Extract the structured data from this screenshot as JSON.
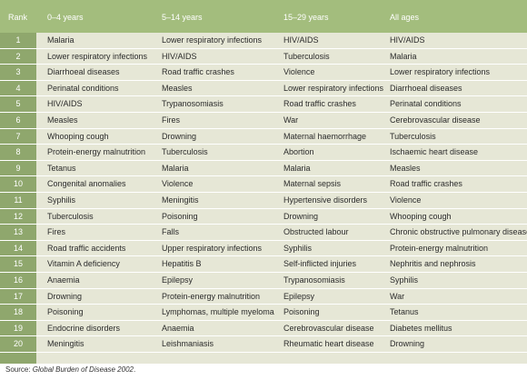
{
  "header": {
    "rank": "Rank",
    "col1": "0–4 years",
    "col2": "5–14 years",
    "col3": "15–29 years",
    "col4": "All ages"
  },
  "rows": [
    {
      "rank": "1",
      "c1": "Malaria",
      "c2": "Lower respiratory infections",
      "c3": "HIV/AIDS",
      "c4": "HIV/AIDS"
    },
    {
      "rank": "2",
      "c1": "Lower respiratory infections",
      "c2": "HIV/AIDS",
      "c3": "Tuberculosis",
      "c4": "Malaria"
    },
    {
      "rank": "3",
      "c1": "Diarrhoeal diseases",
      "c2": "Road traffic crashes",
      "c3": "Violence",
      "c4": "Lower respiratory infections"
    },
    {
      "rank": "4",
      "c1": "Perinatal conditions",
      "c2": "Measles",
      "c3": "Lower respiratory infections",
      "c4": "Diarrhoeal diseases"
    },
    {
      "rank": "5",
      "c1": "HIV/AIDS",
      "c2": "Trypanosomiasis",
      "c3": "Road traffic crashes",
      "c4": "Perinatal conditions"
    },
    {
      "rank": "6",
      "c1": "Measles",
      "c2": "Fires",
      "c3": "War",
      "c4": "Cerebrovascular disease"
    },
    {
      "rank": "7",
      "c1": "Whooping cough",
      "c2": "Drowning",
      "c3": "Maternal haemorrhage",
      "c4": "Tuberculosis"
    },
    {
      "rank": "8",
      "c1": "Protein-energy malnutrition",
      "c2": "Tuberculosis",
      "c3": "Abortion",
      "c4": "Ischaemic heart disease"
    },
    {
      "rank": "9",
      "c1": "Tetanus",
      "c2": "Malaria",
      "c3": "Malaria",
      "c4": "Measles"
    },
    {
      "rank": "10",
      "c1": "Congenital anomalies",
      "c2": "Violence",
      "c3": "Maternal sepsis",
      "c4": "Road traffic crashes"
    },
    {
      "rank": "11",
      "c1": "Syphilis",
      "c2": "Meningitis",
      "c3": "Hypertensive disorders",
      "c4": "Violence"
    },
    {
      "rank": "12",
      "c1": "Tuberculosis",
      "c2": "Poisoning",
      "c3": "Drowning",
      "c4": "Whooping cough"
    },
    {
      "rank": "13",
      "c1": "Fires",
      "c2": "Falls",
      "c3": "Obstructed labour",
      "c4": "Chronic obstructive pulmonary disease"
    },
    {
      "rank": "14",
      "c1": "Road traffic accidents",
      "c2": "Upper respiratory infections",
      "c3": "Syphilis",
      "c4": "Protein-energy malnutrition"
    },
    {
      "rank": "15",
      "c1": "Vitamin A deficiency",
      "c2": "Hepatitis B",
      "c3": "Self-inflicted injuries",
      "c4": "Nephritis and nephrosis"
    },
    {
      "rank": "16",
      "c1": "Anaemia",
      "c2": "Epilepsy",
      "c3": "Trypanosomiasis",
      "c4": "Syphilis"
    },
    {
      "rank": "17",
      "c1": "Drowning",
      "c2": "Protein-energy malnutrition",
      "c3": "Epilepsy",
      "c4": "War"
    },
    {
      "rank": "18",
      "c1": "Poisoning",
      "c2": "Lymphomas, multiple myeloma",
      "c3": "Poisoning",
      "c4": "Tetanus"
    },
    {
      "rank": "19",
      "c1": "Endocrine disorders",
      "c2": "Anaemia",
      "c3": "Cerebrovascular disease",
      "c4": "Diabetes mellitus"
    },
    {
      "rank": "20",
      "c1": "Meningitis",
      "c2": "Leishmaniasis",
      "c3": "Rheumatic heart disease",
      "c4": "Drowning"
    }
  ],
  "source": {
    "label": "Source: ",
    "title": "Global Burden of Disease 2002",
    "end": "."
  }
}
